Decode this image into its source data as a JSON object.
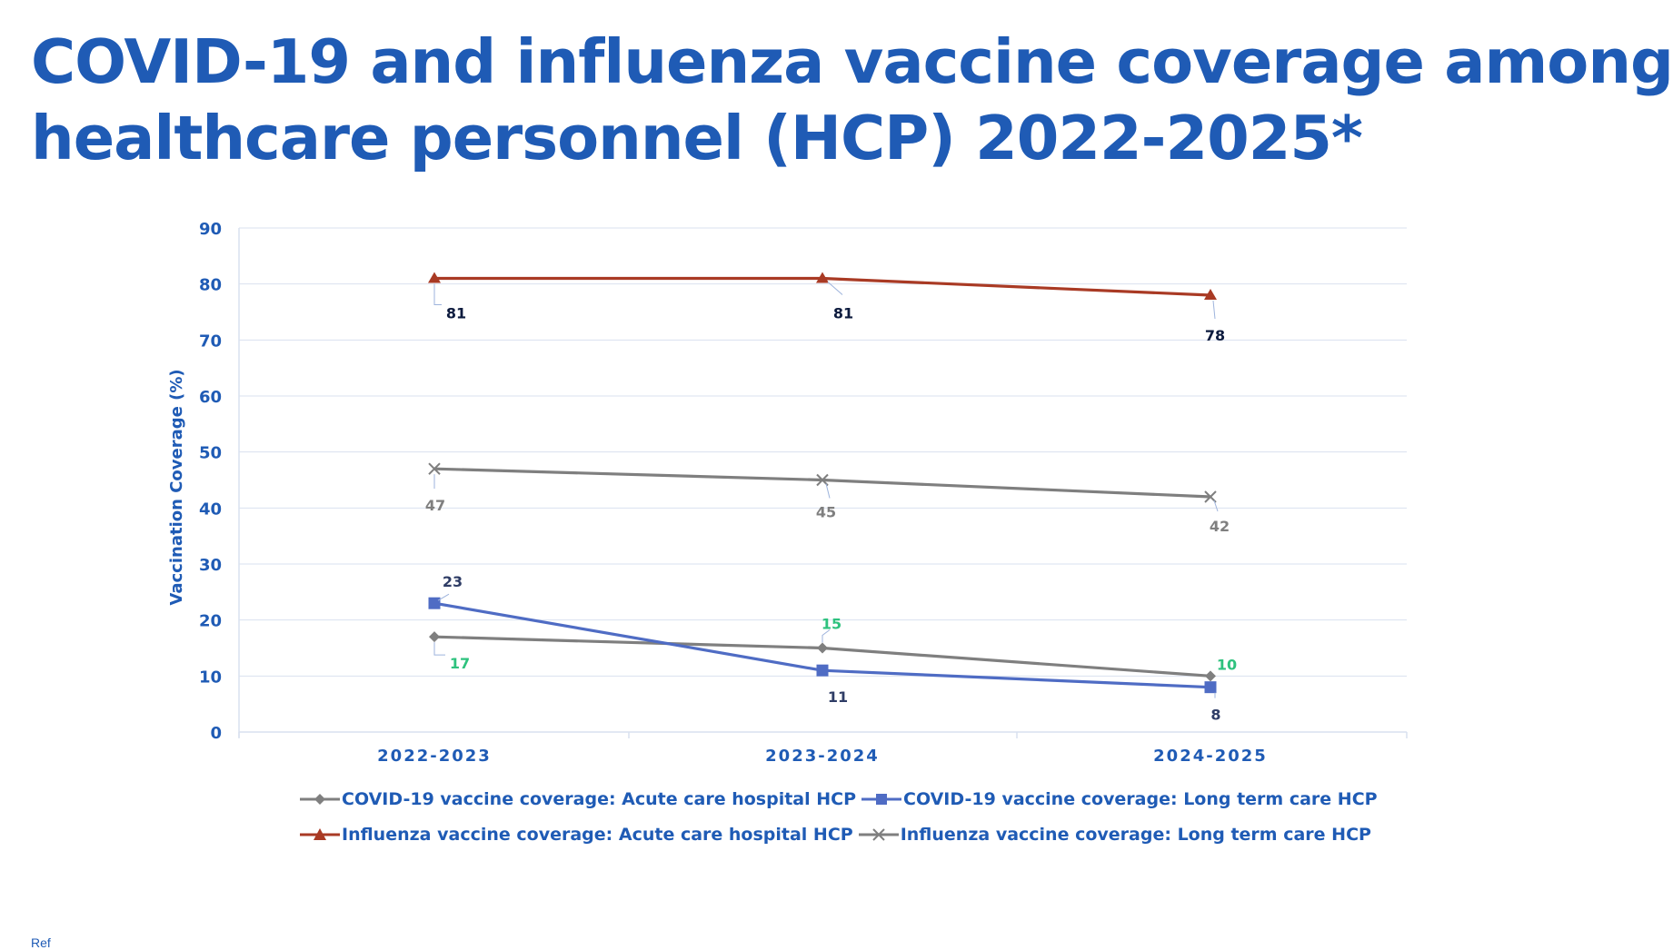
{
  "page": {
    "title_line1": "COVID-19 and influenza vaccine coverage among",
    "title_line2": "healthcare personnel (HCP) 2022-2025*"
  },
  "colors": {
    "title": "#1f5bb5",
    "axis_text": "#1f5bb5",
    "grid": "#d9e1ef",
    "covid_acute": "#7f7f7f",
    "covid_ltc": "#4f6cc4",
    "flu_acute": "#a93a24",
    "flu_ltc": "#7f7f7f",
    "label_dark": "#0d1b3e",
    "label_gray": "#7f7f7f",
    "label_green": "#2ec27e",
    "label_navy": "#2f3d66"
  },
  "chart_data": {
    "type": "line",
    "title": "COVID-19 and influenza vaccine coverage among healthcare personnel (HCP) 2022-2025*",
    "xlabel": "",
    "ylabel": "Vaccination Coverage (%)",
    "ylim": [
      0,
      90
    ],
    "yticks": [
      "0",
      "10",
      "20",
      "30",
      "40",
      "50",
      "60",
      "70",
      "80",
      "90"
    ],
    "categories": [
      "2022-2023",
      "2023-2024",
      "2024-2025"
    ],
    "grid": true,
    "legend_position": "bottom",
    "series": [
      {
        "name": "COVID-19 vaccine coverage: Acute care hospital HCP",
        "marker": "diamond",
        "color": "#7f7f7f",
        "values": [
          17,
          15,
          10
        ],
        "labels": [
          "17",
          "15",
          "10"
        ],
        "label_color": "#2ec27e"
      },
      {
        "name": "COVID-19 vaccine coverage: Long term care HCP",
        "marker": "square",
        "color": "#4f6cc4",
        "values": [
          23,
          11,
          8
        ],
        "labels": [
          "23",
          "11",
          "8"
        ],
        "label_color": "#2f3d66"
      },
      {
        "name": "Influenza vaccine coverage: Acute care hospital HCP",
        "marker": "triangle",
        "color": "#a93a24",
        "values": [
          81,
          81,
          78
        ],
        "labels": [
          "81",
          "81",
          "78"
        ],
        "label_color": "#0d1b3e"
      },
      {
        "name": "Influenza vaccine coverage: Long term care HCP",
        "marker": "x",
        "color": "#7f7f7f",
        "values": [
          47,
          45,
          42
        ],
        "labels": [
          "47",
          "45",
          "42"
        ],
        "label_color": "#7f7f7f"
      }
    ]
  },
  "footnote": "Ref"
}
